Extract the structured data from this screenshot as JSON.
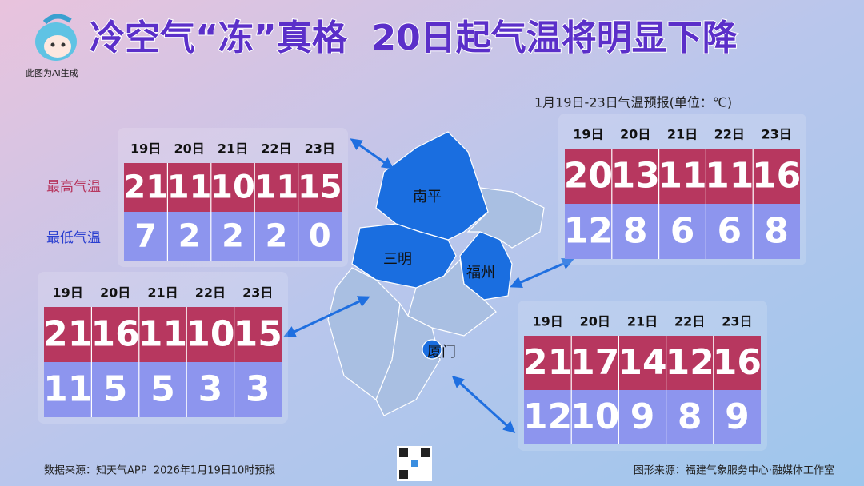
{
  "header": {
    "title": "冷空气“冻”真格  20日起气温将明显下降",
    "note": "此图为AI生成",
    "forecast_label": "1月19日-23日气温预报(单位：℃)"
  },
  "row_labels": [
    "最高气温",
    "最低气温"
  ],
  "tables": [
    {
      "city": "南平",
      "dates": [
        "19日",
        "20日",
        "21日",
        "22日",
        "23日"
      ],
      "high": [
        21,
        11,
        10,
        11,
        15
      ],
      "low": [
        7,
        2,
        2,
        2,
        0
      ]
    },
    {
      "city": "福州",
      "dates": [
        "19日",
        "20日",
        "21日",
        "22日",
        "23日"
      ],
      "high": [
        20,
        13,
        11,
        11,
        16
      ],
      "low": [
        12,
        8,
        6,
        6,
        8
      ]
    },
    {
      "city": "三明",
      "dates": [
        "19日",
        "20日",
        "21日",
        "22日",
        "23日"
      ],
      "high": [
        21,
        16,
        11,
        10,
        15
      ],
      "low": [
        11,
        5,
        5,
        3,
        3
      ]
    },
    {
      "city": "厦门",
      "dates": [
        "19日",
        "20日",
        "21日",
        "22日",
        "23日"
      ],
      "high": [
        21,
        17,
        14,
        12,
        16
      ],
      "low": [
        12,
        10,
        9,
        8,
        9
      ]
    }
  ],
  "footer": {
    "source": "数据来源：知天气APP  2026年1月19日10时预报",
    "credit": "图形来源：福建气象服务中心·融媒体工作室"
  }
}
